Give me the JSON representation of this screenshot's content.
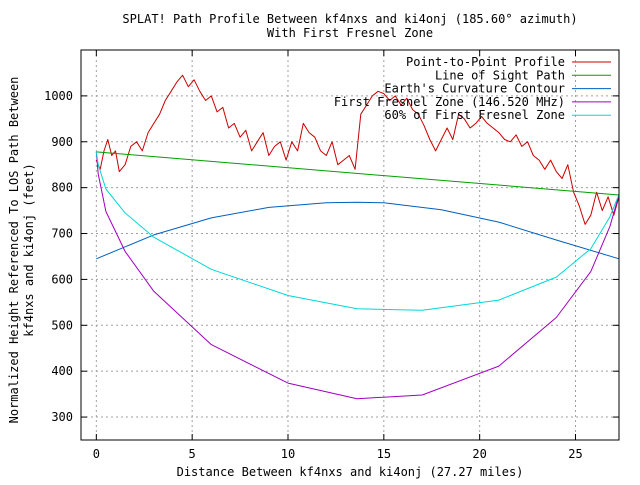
{
  "chart_data": {
    "type": "line",
    "title": "SPLAT! Path Profile Between kf4nxs and ki4onj (185.60° azimuth)",
    "subtitle": "With First Fresnel Zone",
    "xlabel": "Distance Between kf4nxs and ki4onj (27.27 miles)",
    "ylabel": "Normalized Height Referenced To LOS Path Between",
    "ylabel2": "kf4nxs and ki4onj (feet)",
    "xlim": [
      -0.8,
      27.27
    ],
    "ylim": [
      250,
      1100
    ],
    "x_ticks": [
      0,
      5,
      10,
      15,
      20,
      25
    ],
    "y_ticks": [
      300,
      400,
      500,
      600,
      700,
      800,
      900,
      1000
    ],
    "x_tick_labels": [
      "0",
      "5",
      "10",
      "15",
      "20",
      "25"
    ],
    "y_tick_labels": [
      "300",
      "400",
      "500",
      "600",
      "700",
      "800",
      "900",
      "1000"
    ],
    "grid": true,
    "legend_position": "top-right",
    "series": [
      {
        "name": "Point-to-Point Profile",
        "color": "#cc0000",
        "x": [
          0,
          0.2,
          0.4,
          0.6,
          0.8,
          1.0,
          1.2,
          1.5,
          1.8,
          2.1,
          2.4,
          2.7,
          3.0,
          3.3,
          3.6,
          3.9,
          4.2,
          4.5,
          4.8,
          5.1,
          5.4,
          5.7,
          6.0,
          6.3,
          6.6,
          6.9,
          7.2,
          7.5,
          7.8,
          8.1,
          8.4,
          8.7,
          9.0,
          9.3,
          9.6,
          9.9,
          10.2,
          10.5,
          10.8,
          11.1,
          11.4,
          11.7,
          12.0,
          12.3,
          12.6,
          12.9,
          13.2,
          13.5,
          13.8,
          14.1,
          14.4,
          14.7,
          15.0,
          15.3,
          15.6,
          15.9,
          16.2,
          16.5,
          16.8,
          17.1,
          17.4,
          17.7,
          18.0,
          18.3,
          18.6,
          18.9,
          19.2,
          19.5,
          19.8,
          20.1,
          20.4,
          20.7,
          21.0,
          21.3,
          21.6,
          21.9,
          22.2,
          22.5,
          22.8,
          23.1,
          23.4,
          23.7,
          24.0,
          24.3,
          24.6,
          24.9,
          25.2,
          25.5,
          25.8,
          26.1,
          26.4,
          26.7,
          27.0,
          27.27
        ],
        "y": [
          860,
          840,
          880,
          905,
          870,
          880,
          835,
          850,
          890,
          900,
          880,
          920,
          940,
          960,
          990,
          1010,
          1030,
          1045,
          1020,
          1035,
          1010,
          990,
          1000,
          965,
          975,
          930,
          940,
          910,
          925,
          880,
          900,
          920,
          870,
          890,
          900,
          860,
          900,
          880,
          940,
          920,
          910,
          880,
          870,
          900,
          850,
          860,
          870,
          840,
          960,
          980,
          1000,
          1010,
          1005,
          990,
          1000,
          980,
          995,
          970,
          960,
          935,
          905,
          880,
          905,
          930,
          905,
          960,
          950,
          930,
          940,
          955,
          940,
          930,
          920,
          905,
          900,
          915,
          890,
          900,
          870,
          860,
          840,
          860,
          835,
          820,
          850,
          790,
          760,
          720,
          740,
          790,
          750,
          780,
          740,
          780
        ]
      },
      {
        "name": "Line of Sight Path",
        "color": "#00a000",
        "x": [
          0,
          27.27
        ],
        "y": [
          878,
          784
        ]
      },
      {
        "name": "Earth's Curvature Contour",
        "color": "#0060c0",
        "x": [
          0,
          3,
          6,
          9,
          12,
          13.6,
          15,
          18,
          21,
          24,
          27.27
        ],
        "y": [
          645,
          697,
          734,
          757,
          767,
          768,
          767,
          752,
          725,
          686,
          645
        ]
      },
      {
        "name": "First Fresnel Zone (146.520 MHz)",
        "color": "#a000c0",
        "x": [
          0,
          0.1,
          0.5,
          1.5,
          3,
          6,
          10,
          13.6,
          17,
          21,
          24,
          25.8,
          26.8,
          27.17,
          27.27
        ],
        "y": [
          878,
          830,
          748,
          661,
          574,
          458,
          374,
          340,
          348,
          411,
          517,
          617,
          716,
          770,
          784
        ]
      },
      {
        "name": "60% of First Fresnel Zone",
        "color": "#00d8d8",
        "x": [
          0,
          0.1,
          0.5,
          1.5,
          3,
          6,
          10,
          13.6,
          17,
          21,
          24,
          25.8,
          26.8,
          27.17,
          27.27
        ],
        "y": [
          878,
          850,
          797,
          745,
          692,
          622,
          565,
          536,
          533,
          555,
          605,
          667,
          737,
          775,
          784
        ]
      }
    ]
  }
}
